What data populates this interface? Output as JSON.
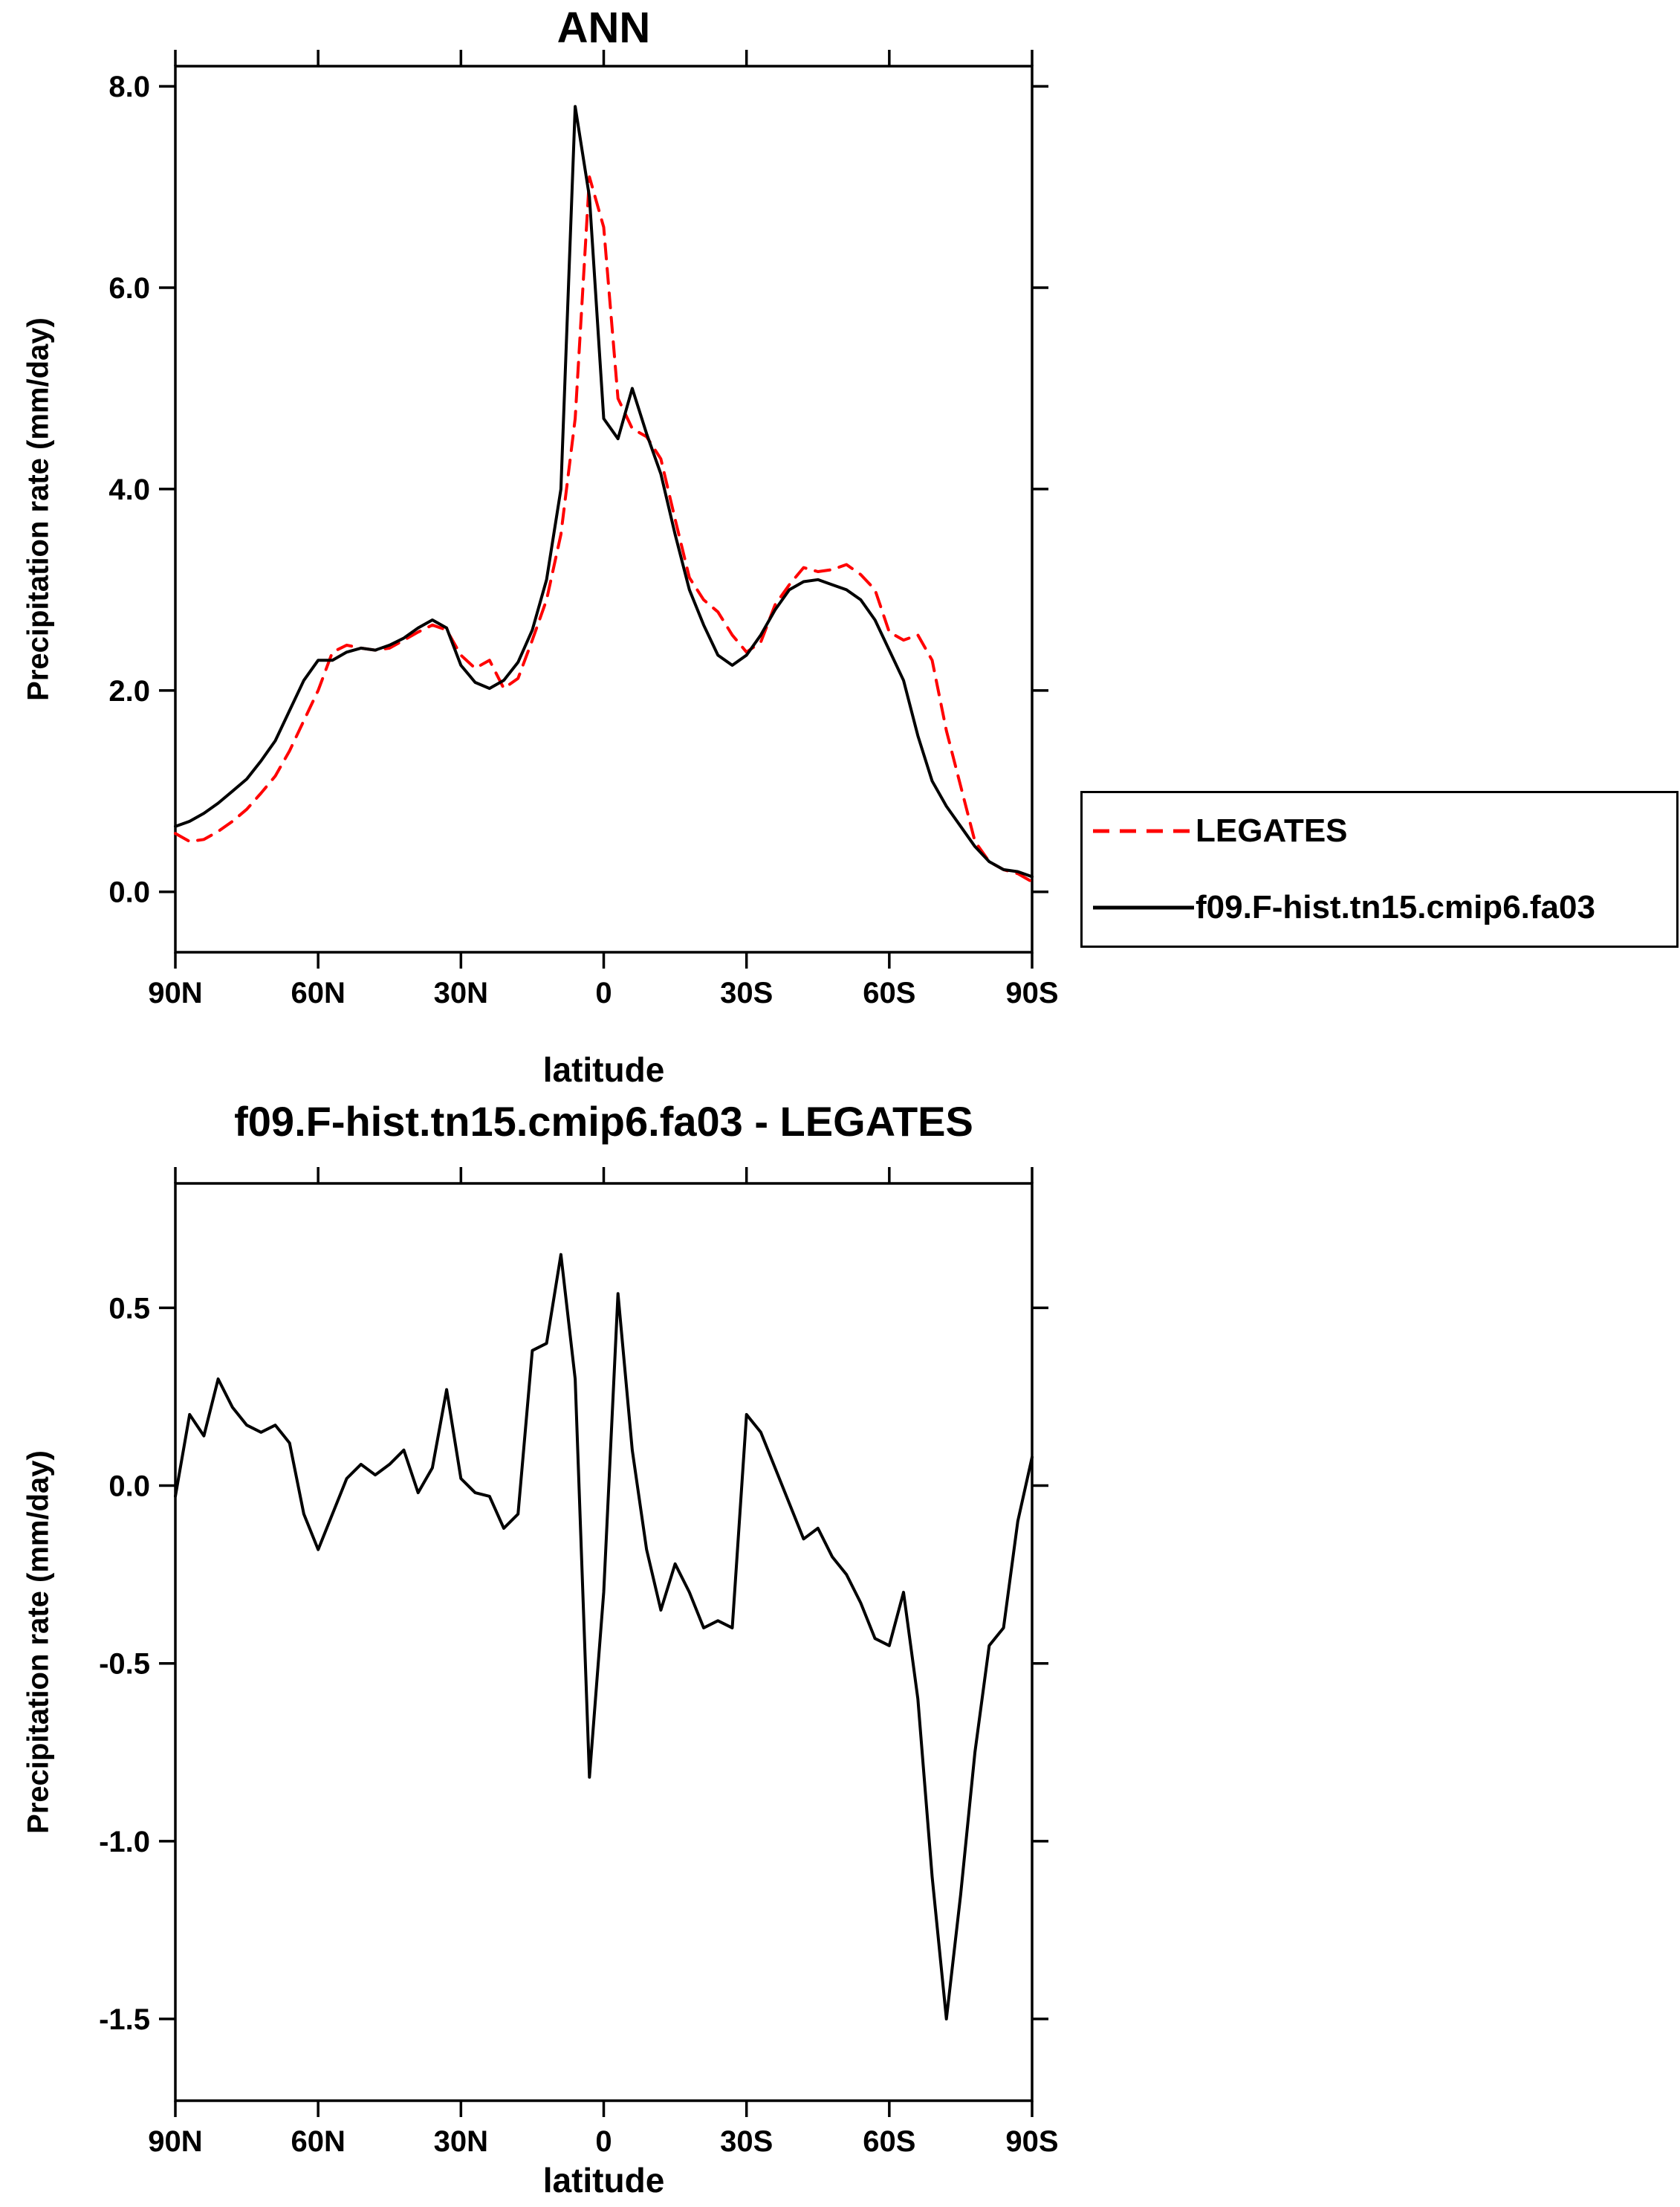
{
  "figure": {
    "background": "#ffffff",
    "frame_color": "#000000"
  },
  "chart_data": [
    {
      "type": "line",
      "title": "ANN",
      "xlabel": "latitude",
      "ylabel": "Precipitation rate (mm/day)",
      "xlim": [
        90,
        -90
      ],
      "ylim": [
        0,
        8
      ],
      "frame_ylim": [
        -0.6,
        8.2
      ],
      "grid": false,
      "legend_position": "outside-right",
      "x_ticks": [
        {
          "value": 90,
          "label": "90N"
        },
        {
          "value": 60,
          "label": "60N"
        },
        {
          "value": 30,
          "label": "30N"
        },
        {
          "value": 0,
          "label": "0"
        },
        {
          "value": -30,
          "label": "30S"
        },
        {
          "value": -60,
          "label": "60S"
        },
        {
          "value": -90,
          "label": "90S"
        }
      ],
      "y_ticks": [
        {
          "value": 0,
          "label": "0.0"
        },
        {
          "value": 2,
          "label": "2.0"
        },
        {
          "value": 4,
          "label": "4.0"
        },
        {
          "value": 6,
          "label": "6.0"
        },
        {
          "value": 8,
          "label": "8.0"
        }
      ],
      "x": [
        90,
        87,
        84,
        81,
        78,
        75,
        72,
        69,
        66,
        63,
        60,
        57,
        54,
        51,
        48,
        45,
        42,
        39,
        36,
        33,
        30,
        27,
        24,
        21,
        18,
        15,
        12,
        9,
        6,
        3,
        0,
        -3,
        -6,
        -9,
        -12,
        -15,
        -18,
        -21,
        -24,
        -27,
        -30,
        -33,
        -36,
        -39,
        -42,
        -45,
        -48,
        -51,
        -54,
        -57,
        -60,
        -63,
        -66,
        -69,
        -72,
        -75,
        -78,
        -81,
        -84,
        -87,
        -90
      ],
      "series": [
        {
          "id": "legates",
          "name": "LEGATES",
          "color": "#ff0000",
          "line_style": "dashed",
          "values": [
            0.58,
            0.5,
            0.52,
            0.6,
            0.7,
            0.82,
            0.98,
            1.15,
            1.4,
            1.7,
            2.0,
            2.38,
            2.45,
            2.42,
            2.4,
            2.42,
            2.5,
            2.58,
            2.65,
            2.6,
            2.35,
            2.22,
            2.3,
            2.02,
            2.12,
            2.5,
            2.9,
            3.55,
            4.7,
            7.1,
            6.6,
            4.9,
            4.6,
            4.52,
            4.3,
            3.7,
            3.12,
            2.9,
            2.78,
            2.55,
            2.38,
            2.48,
            2.85,
            3.05,
            3.22,
            3.18,
            3.2,
            3.25,
            3.15,
            3.0,
            2.58,
            2.5,
            2.55,
            2.3,
            1.6,
            1.05,
            0.5,
            0.3,
            0.22,
            0.18,
            0.1
          ]
        },
        {
          "id": "model",
          "name": "f09.F-hist.tn15.cmip6.fa03",
          "color": "#000000",
          "line_style": "solid",
          "values": [
            0.65,
            0.7,
            0.78,
            0.88,
            1.0,
            1.12,
            1.3,
            1.5,
            1.8,
            2.1,
            2.3,
            2.3,
            2.38,
            2.42,
            2.4,
            2.45,
            2.52,
            2.62,
            2.7,
            2.62,
            2.25,
            2.08,
            2.02,
            2.1,
            2.28,
            2.6,
            3.1,
            4.0,
            7.8,
            6.9,
            4.7,
            4.5,
            5.0,
            4.55,
            4.15,
            3.55,
            3.0,
            2.65,
            2.35,
            2.25,
            2.35,
            2.55,
            2.8,
            3.0,
            3.08,
            3.1,
            3.05,
            3.0,
            2.9,
            2.7,
            2.4,
            2.1,
            1.55,
            1.1,
            0.85,
            0.65,
            0.45,
            0.3,
            0.22,
            0.2,
            0.15
          ]
        }
      ]
    },
    {
      "type": "line",
      "title": "f09.F-hist.tn15.cmip6.fa03 - LEGATES",
      "xlabel": "latitude",
      "ylabel": "Precipitation rate (mm/day)",
      "xlim": [
        90,
        -90
      ],
      "ylim": [
        -1.5,
        0.5
      ],
      "frame_ylim": [
        -1.73,
        0.85
      ],
      "grid": false,
      "x_ticks": [
        {
          "value": 90,
          "label": "90N"
        },
        {
          "value": 60,
          "label": "60N"
        },
        {
          "value": 30,
          "label": "30N"
        },
        {
          "value": 0,
          "label": "0"
        },
        {
          "value": -30,
          "label": "30S"
        },
        {
          "value": -60,
          "label": "60S"
        },
        {
          "value": -90,
          "label": "90S"
        }
      ],
      "y_ticks": [
        {
          "value": 0.5,
          "label": "0.5"
        },
        {
          "value": 0.0,
          "label": "0.0"
        },
        {
          "value": -0.5,
          "label": "-0.5"
        },
        {
          "value": -1.0,
          "label": "-1.0"
        },
        {
          "value": -1.5,
          "label": "-1.5"
        }
      ],
      "x": [
        90,
        87,
        84,
        81,
        78,
        75,
        72,
        69,
        66,
        63,
        60,
        57,
        54,
        51,
        48,
        45,
        42,
        39,
        36,
        33,
        30,
        27,
        24,
        21,
        18,
        15,
        12,
        9,
        6,
        3,
        0,
        -3,
        -6,
        -9,
        -12,
        -15,
        -18,
        -21,
        -24,
        -27,
        -30,
        -33,
        -36,
        -39,
        -42,
        -45,
        -48,
        -51,
        -54,
        -57,
        -60,
        -63,
        -66,
        -69,
        -72,
        -75,
        -78,
        -81,
        -84,
        -87,
        -90
      ],
      "series": [
        {
          "id": "difference",
          "name": "f09.F-hist.tn15.cmip6.fa03 - LEGATES",
          "color": "#000000",
          "line_style": "solid",
          "values": [
            -0.03,
            0.2,
            0.14,
            0.3,
            0.22,
            0.17,
            0.15,
            0.17,
            0.12,
            -0.08,
            -0.18,
            -0.08,
            0.02,
            0.06,
            0.03,
            0.06,
            0.1,
            -0.02,
            0.05,
            0.27,
            0.02,
            -0.02,
            -0.03,
            -0.12,
            -0.08,
            0.38,
            0.4,
            0.65,
            0.3,
            -0.82,
            -0.3,
            0.54,
            0.1,
            -0.18,
            -0.35,
            -0.22,
            -0.3,
            -0.4,
            -0.38,
            -0.4,
            0.2,
            0.15,
            0.05,
            -0.05,
            -0.15,
            -0.12,
            -0.2,
            -0.25,
            -0.33,
            -0.43,
            -0.45,
            -0.3,
            -0.6,
            -1.1,
            -1.5,
            -1.15,
            -0.75,
            -0.45,
            -0.4,
            -0.1,
            0.08
          ]
        }
      ]
    }
  ]
}
